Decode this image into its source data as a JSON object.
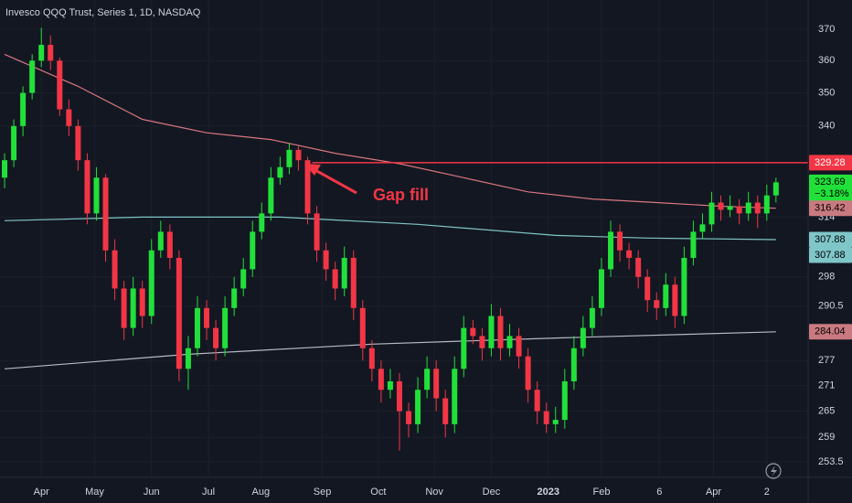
{
  "chart_data": {
    "type": "candlestick",
    "title": "Invesco QQQ Trust, Series 1, 1D, NASDAQ",
    "up_color": "#22e03a",
    "down_color": "#f23645",
    "log": true,
    "grid": true,
    "ylim": [
      250.1,
      379.6
    ],
    "yticks": [
      370,
      360,
      350,
      340,
      314,
      298,
      290.5,
      277,
      271,
      265,
      259,
      253.5
    ],
    "xlim": [
      -0.5,
      87.5
    ],
    "xticks": [
      {
        "value": 4,
        "label": "Apr"
      },
      {
        "value": 9.8,
        "label": "May"
      },
      {
        "value": 16,
        "label": "Jun"
      },
      {
        "value": 22.2,
        "label": "Jul"
      },
      {
        "value": 27.9,
        "label": "Aug"
      },
      {
        "value": 34.6,
        "label": "Sep"
      },
      {
        "value": 40.7,
        "label": "Oct"
      },
      {
        "value": 46.8,
        "label": "Nov"
      },
      {
        "value": 53,
        "label": "Dec"
      },
      {
        "value": 59.2,
        "label": "2023",
        "bold": true
      },
      {
        "value": 65,
        "label": "Feb"
      },
      {
        "value": 71.3,
        "label": "6"
      },
      {
        "value": 77.2,
        "label": "Apr"
      },
      {
        "value": 83,
        "label": "2"
      }
    ],
    "ohlc": [
      [
        325,
        332,
        322,
        330
      ],
      [
        330,
        342,
        328,
        340
      ],
      [
        340,
        352,
        337,
        350
      ],
      [
        350,
        362,
        348,
        360
      ],
      [
        360,
        370.5,
        358,
        365
      ],
      [
        365,
        368,
        357,
        360
      ],
      [
        360,
        361,
        343,
        345
      ],
      [
        345,
        348,
        337,
        340
      ],
      [
        340,
        342,
        327,
        330
      ],
      [
        330,
        332,
        312,
        315
      ],
      [
        315,
        328,
        313,
        325
      ],
      [
        325,
        326,
        302,
        305
      ],
      [
        305,
        308,
        292,
        295
      ],
      [
        295,
        297,
        282,
        285
      ],
      [
        285,
        298,
        283,
        295
      ],
      [
        295,
        297,
        285,
        288
      ],
      [
        288,
        308,
        286,
        305
      ],
      [
        305,
        313,
        303,
        310
      ],
      [
        310,
        312,
        300,
        303
      ],
      [
        303,
        305,
        272,
        275
      ],
      [
        275,
        283,
        270,
        280
      ],
      [
        280,
        293,
        278,
        290
      ],
      [
        290,
        292,
        282,
        285
      ],
      [
        285,
        287,
        277,
        280
      ],
      [
        280,
        293,
        278,
        290
      ],
      [
        290,
        298,
        288,
        295
      ],
      [
        295,
        303,
        293,
        300
      ],
      [
        300,
        313,
        298,
        310
      ],
      [
        310,
        318,
        308,
        315
      ],
      [
        315,
        328,
        313,
        325
      ],
      [
        325,
        331,
        323,
        328
      ],
      [
        328,
        335,
        326,
        333
      ],
      [
        333,
        334,
        327,
        330
      ],
      [
        330,
        331,
        312,
        315
      ],
      [
        315,
        317,
        302,
        305
      ],
      [
        305,
        307,
        297,
        300
      ],
      [
        300,
        302,
        292,
        295
      ],
      [
        295,
        306,
        293,
        303
      ],
      [
        303,
        305,
        287,
        290
      ],
      [
        290,
        292,
        277,
        280
      ],
      [
        280,
        282,
        272,
        275
      ],
      [
        275,
        277,
        267,
        270
      ],
      [
        270,
        275,
        268,
        272
      ],
      [
        272,
        274,
        256,
        265
      ],
      [
        265,
        267,
        259,
        262
      ],
      [
        262,
        273,
        260,
        270
      ],
      [
        270,
        278,
        268,
        275
      ],
      [
        275,
        277,
        265,
        268
      ],
      [
        268,
        270,
        259,
        262
      ],
      [
        262,
        278,
        260,
        275
      ],
      [
        275,
        288,
        273,
        285
      ],
      [
        285,
        287,
        281,
        283
      ],
      [
        283,
        285,
        277,
        280
      ],
      [
        280,
        291,
        278,
        288
      ],
      [
        288,
        290,
        277,
        280
      ],
      [
        280,
        286,
        278,
        283
      ],
      [
        283,
        285,
        275,
        278
      ],
      [
        278,
        280,
        267,
        270
      ],
      [
        270,
        272,
        262,
        265
      ],
      [
        265,
        267,
        260,
        262
      ],
      [
        262,
        266,
        260,
        263
      ],
      [
        263,
        275,
        261,
        272
      ],
      [
        272,
        283,
        270,
        280
      ],
      [
        280,
        288,
        278,
        285
      ],
      [
        285,
        293,
        283,
        290
      ],
      [
        290,
        303,
        288,
        300
      ],
      [
        300,
        313,
        298,
        310
      ],
      [
        310,
        312,
        302,
        305
      ],
      [
        305,
        307,
        300,
        303
      ],
      [
        303,
        305,
        295,
        298
      ],
      [
        298,
        300,
        289,
        292
      ],
      [
        292,
        294,
        287,
        290
      ],
      [
        290,
        299,
        288,
        296
      ],
      [
        296,
        298,
        285,
        288
      ],
      [
        288,
        306,
        286,
        303
      ],
      [
        303,
        313,
        301,
        310
      ],
      [
        310,
        315,
        308,
        312
      ],
      [
        312,
        321,
        310,
        318
      ],
      [
        318,
        320,
        313,
        316
      ],
      [
        316,
        320,
        314,
        317
      ],
      [
        317,
        319,
        312,
        315
      ],
      [
        315,
        321,
        313,
        318
      ],
      [
        318,
        320,
        311,
        315
      ],
      [
        315,
        323,
        313,
        320
      ],
      [
        320,
        325,
        318,
        323.69
      ]
    ],
    "overlays": [
      {
        "color": "#d9777f",
        "x": [
          0,
          8,
          15,
          22,
          29,
          36,
          43,
          50,
          57,
          64,
          71,
          78,
          84
        ],
        "values": [
          362,
          352,
          342,
          338,
          336,
          332,
          329,
          325,
          321,
          319,
          318,
          317,
          316.42
        ]
      },
      {
        "color": "#7fc6c9",
        "x": [
          0,
          15,
          30,
          45,
          60,
          70,
          84
        ],
        "values": [
          313,
          314,
          314,
          312,
          309,
          308.3,
          307.88
        ]
      },
      {
        "color": "#b8b8c4",
        "x": [
          0,
          20,
          40,
          60,
          84
        ],
        "values": [
          275,
          278.5,
          281,
          282.5,
          284.04
        ]
      }
    ],
    "hline": {
      "value": 329.28,
      "from": 33.5,
      "color": "#f23645"
    },
    "annotation": "Gap fill",
    "price_labels": [
      {
        "value": 329.28,
        "color": "#f23645",
        "text_color": "#ffffff"
      },
      {
        "value": 323.69,
        "color": "#22e03a",
        "text_color": "#000000",
        "change": {
          "value": -3.18,
          "label": "−3.18%"
        }
      },
      {
        "value": 316.42,
        "color": "#c97a80",
        "text_color": "#000000"
      },
      {
        "value": 307.88,
        "color": "#7fc6c9",
        "text_color": "#000000"
      },
      {
        "value": 307.88,
        "color": "#7fc6c9",
        "text_color": "#000000"
      },
      {
        "value": 284.04,
        "color": "#c97a80",
        "text_color": "#000000"
      }
    ]
  }
}
